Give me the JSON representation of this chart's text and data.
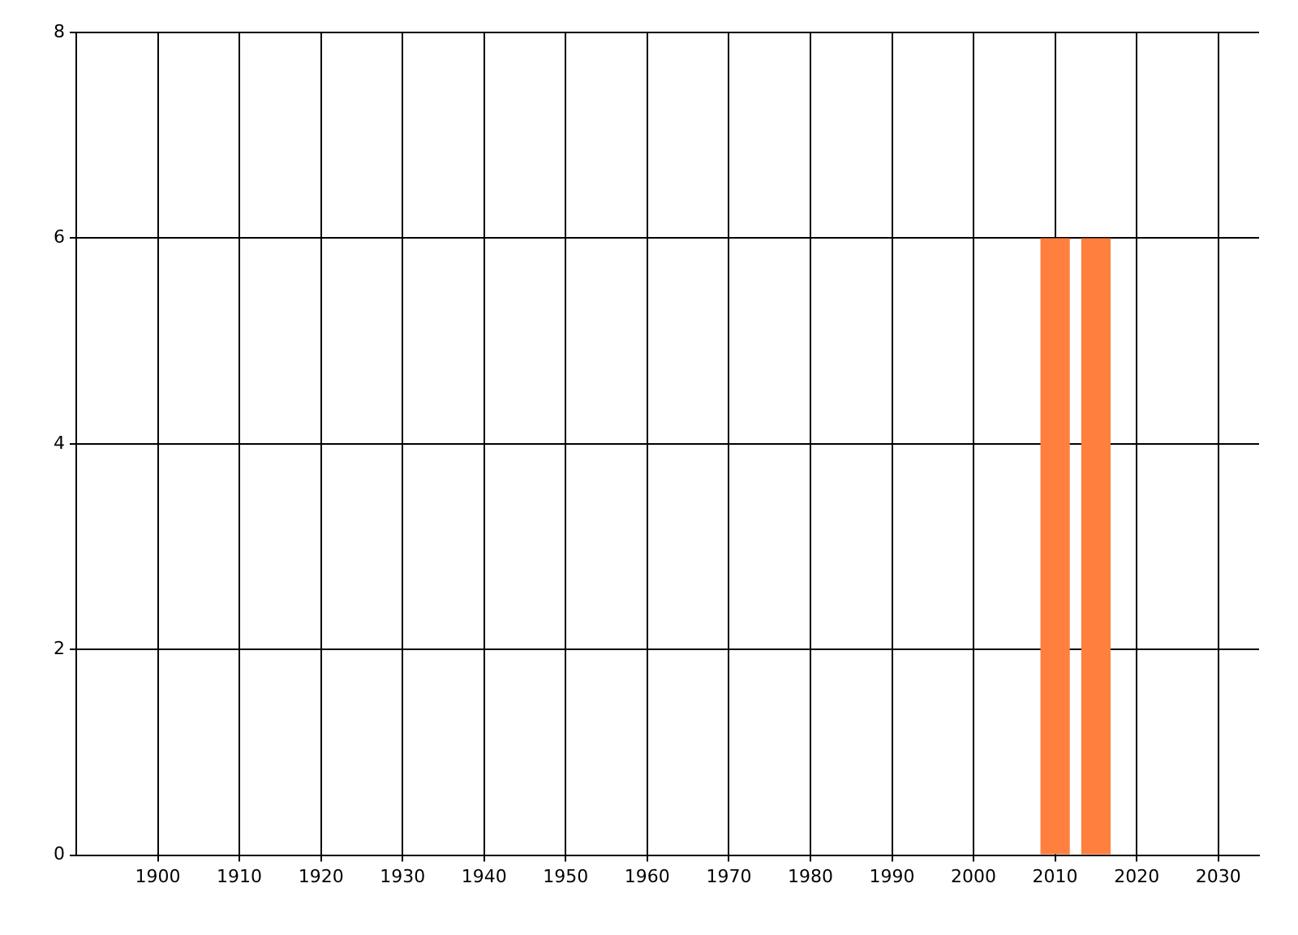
{
  "chart_data": {
    "type": "bar",
    "x": [
      2010,
      2015
    ],
    "values": [
      6,
      6
    ],
    "color": "#ff7f3f",
    "xlim": [
      1890,
      2035
    ],
    "xticks": [
      1900,
      1910,
      1920,
      1930,
      1940,
      1950,
      1960,
      1970,
      1980,
      1990,
      2000,
      2010,
      2020,
      2030
    ],
    "ylim": [
      0,
      8
    ],
    "yticks": [
      0,
      2,
      4,
      6,
      8
    ],
    "grid": true,
    "legend": false
  }
}
